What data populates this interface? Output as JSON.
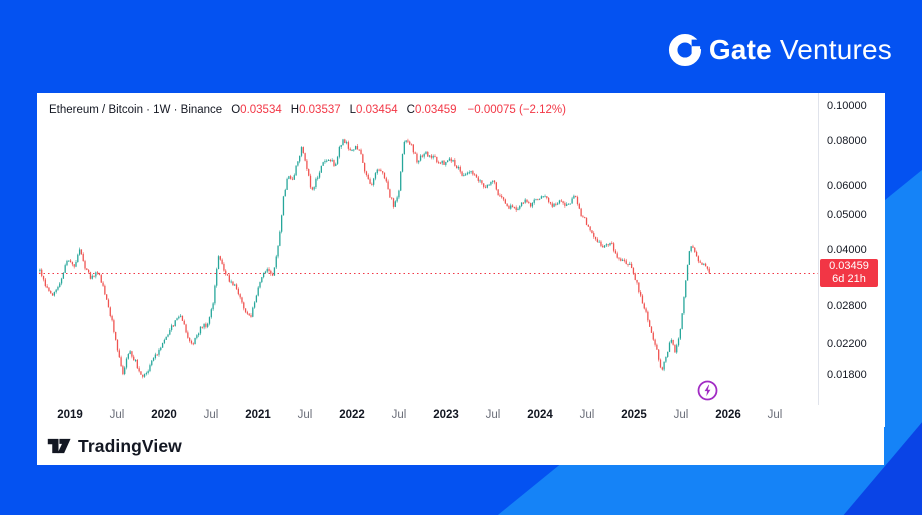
{
  "brand": {
    "gate_bold": "Gate",
    "gate_regular": "Ventures"
  },
  "header": {
    "symbol_title": "Ethereum / Bitcoin · 1W · Binance",
    "ohlc": [
      {
        "label": "O",
        "value": "0.03534"
      },
      {
        "label": "H",
        "value": "0.03537"
      },
      {
        "label": "L",
        "value": "0.03454"
      },
      {
        "label": "C",
        "value": "0.03459"
      }
    ],
    "change": "−0.00075 (−2.12%)"
  },
  "price_label": {
    "price": "0.03459",
    "countdown": "6d 21h",
    "value": 0.03459
  },
  "price_axis_ticks": [
    {
      "label": "0.10000",
      "value": 0.1
    },
    {
      "label": "0.08000",
      "value": 0.08
    },
    {
      "label": "0.06000",
      "value": 0.06
    },
    {
      "label": "0.05000",
      "value": 0.05
    },
    {
      "label": "0.04000",
      "value": 0.04
    },
    {
      "label": "0.02800",
      "value": 0.028
    },
    {
      "label": "0.02200",
      "value": 0.022
    },
    {
      "label": "0.01800",
      "value": 0.018
    }
  ],
  "time_axis_ticks": [
    {
      "label": "2019",
      "t": 2019.0,
      "major": true
    },
    {
      "label": "Jul",
      "t": 2019.5,
      "major": false
    },
    {
      "label": "2020",
      "t": 2020.0,
      "major": true
    },
    {
      "label": "Jul",
      "t": 2020.5,
      "major": false
    },
    {
      "label": "2021",
      "t": 2021.0,
      "major": true
    },
    {
      "label": "Jul",
      "t": 2021.5,
      "major": false
    },
    {
      "label": "2022",
      "t": 2022.0,
      "major": true
    },
    {
      "label": "Jul",
      "t": 2022.5,
      "major": false
    },
    {
      "label": "2023",
      "t": 2023.0,
      "major": true
    },
    {
      "label": "Jul",
      "t": 2023.5,
      "major": false
    },
    {
      "label": "2024",
      "t": 2024.0,
      "major": true
    },
    {
      "label": "Jul",
      "t": 2024.5,
      "major": false
    },
    {
      "label": "2025",
      "t": 2025.0,
      "major": true
    },
    {
      "label": "Jul",
      "t": 2025.5,
      "major": false
    },
    {
      "label": "2026",
      "t": 2026.0,
      "major": true
    },
    {
      "label": "Jul",
      "t": 2026.5,
      "major": false
    }
  ],
  "footer": {
    "tradingview": "TradingView"
  },
  "colors": {
    "background": "#0452f1",
    "background_light": "#1583f7",
    "background_corner": "#0a44e6",
    "card": "#ffffff",
    "text": "#131722",
    "muted_text": "#6a6d78",
    "axis_line": "#e0e3eb",
    "up": "#26a69a",
    "down": "#ef5350",
    "accent_red": "#f23645",
    "flash_purple": "#a12bc4"
  },
  "chart_data": {
    "type": "candlestick",
    "title": "Ethereum / Bitcoin",
    "interval": "1W",
    "exchange": "Binance",
    "scale": "log",
    "open": 0.03534,
    "high": 0.03537,
    "low": 0.03454,
    "close": 0.03459,
    "change": -0.00075,
    "change_pct": -2.12,
    "countdown": "6d 21h",
    "x_range_years": [
      2018.68,
      2026.8
    ],
    "y_axis_values": [
      0.1,
      0.08,
      0.06,
      0.05,
      0.04,
      0.028,
      0.022,
      0.018
    ],
    "bars": 372,
    "anchors": [
      [
        2018.68,
        0.0355
      ],
      [
        2018.74,
        0.0318
      ],
      [
        2018.82,
        0.03
      ],
      [
        2018.9,
        0.033
      ],
      [
        2018.97,
        0.038
      ],
      [
        2019.04,
        0.036
      ],
      [
        2019.1,
        0.04
      ],
      [
        2019.16,
        0.036
      ],
      [
        2019.22,
        0.0335
      ],
      [
        2019.3,
        0.035
      ],
      [
        2019.38,
        0.03
      ],
      [
        2019.45,
        0.0252
      ],
      [
        2019.51,
        0.021
      ],
      [
        2019.56,
        0.0183
      ],
      [
        2019.63,
        0.021
      ],
      [
        2019.7,
        0.0195
      ],
      [
        2019.76,
        0.018
      ],
      [
        2019.82,
        0.0182
      ],
      [
        2019.88,
        0.02
      ],
      [
        2019.95,
        0.021
      ],
      [
        2020.04,
        0.0235
      ],
      [
        2020.12,
        0.0253
      ],
      [
        2020.18,
        0.0262
      ],
      [
        2020.24,
        0.0235
      ],
      [
        2020.3,
        0.0215
      ],
      [
        2020.38,
        0.0242
      ],
      [
        2020.46,
        0.025
      ],
      [
        2020.52,
        0.0285
      ],
      [
        2020.58,
        0.039
      ],
      [
        2020.64,
        0.035
      ],
      [
        2020.7,
        0.033
      ],
      [
        2020.78,
        0.031
      ],
      [
        2020.85,
        0.0272
      ],
      [
        2020.92,
        0.0262
      ],
      [
        2020.98,
        0.0295
      ],
      [
        2021.04,
        0.034
      ],
      [
        2021.1,
        0.0352
      ],
      [
        2021.16,
        0.0335
      ],
      [
        2021.22,
        0.042
      ],
      [
        2021.27,
        0.056
      ],
      [
        2021.32,
        0.065
      ],
      [
        2021.37,
        0.063
      ],
      [
        2021.42,
        0.07
      ],
      [
        2021.47,
        0.0775
      ],
      [
        2021.52,
        0.068
      ],
      [
        2021.57,
        0.058
      ],
      [
        2021.63,
        0.064
      ],
      [
        2021.7,
        0.07
      ],
      [
        2021.76,
        0.071
      ],
      [
        2021.82,
        0.069
      ],
      [
        2021.88,
        0.079
      ],
      [
        2021.92,
        0.0805
      ],
      [
        2021.97,
        0.076
      ],
      [
        2022.03,
        0.077
      ],
      [
        2022.09,
        0.0745
      ],
      [
        2022.15,
        0.064
      ],
      [
        2022.2,
        0.06
      ],
      [
        2022.27,
        0.067
      ],
      [
        2022.33,
        0.066
      ],
      [
        2022.4,
        0.057
      ],
      [
        2022.45,
        0.0525
      ],
      [
        2022.5,
        0.059
      ],
      [
        2022.55,
        0.078
      ],
      [
        2022.58,
        0.0815
      ],
      [
        2022.64,
        0.077
      ],
      [
        2022.7,
        0.07
      ],
      [
        2022.76,
        0.0745
      ],
      [
        2022.83,
        0.073
      ],
      [
        2022.9,
        0.071
      ],
      [
        2022.97,
        0.0695
      ],
      [
        2023.04,
        0.072
      ],
      [
        2023.11,
        0.0685
      ],
      [
        2023.18,
        0.0645
      ],
      [
        2023.26,
        0.0665
      ],
      [
        2023.34,
        0.0628
      ],
      [
        2023.42,
        0.0598
      ],
      [
        2023.5,
        0.062
      ],
      [
        2023.58,
        0.0556
      ],
      [
        2023.66,
        0.053
      ],
      [
        2023.74,
        0.0518
      ],
      [
        2023.82,
        0.055
      ],
      [
        2023.9,
        0.0528
      ],
      [
        2023.97,
        0.0556
      ],
      [
        2024.05,
        0.0568
      ],
      [
        2024.12,
        0.053
      ],
      [
        2024.2,
        0.0548
      ],
      [
        2024.28,
        0.053
      ],
      [
        2024.37,
        0.0562
      ],
      [
        2024.44,
        0.05
      ],
      [
        2024.52,
        0.0465
      ],
      [
        2024.6,
        0.0425
      ],
      [
        2024.68,
        0.0408
      ],
      [
        2024.75,
        0.042
      ],
      [
        2024.82,
        0.0385
      ],
      [
        2024.9,
        0.037
      ],
      [
        2024.96,
        0.0362
      ],
      [
        2025.02,
        0.033
      ],
      [
        2025.09,
        0.0285
      ],
      [
        2025.16,
        0.0252
      ],
      [
        2025.22,
        0.0222
      ],
      [
        2025.29,
        0.0186
      ],
      [
        2025.34,
        0.02
      ],
      [
        2025.39,
        0.0228
      ],
      [
        2025.44,
        0.0207
      ],
      [
        2025.49,
        0.0238
      ],
      [
        2025.54,
        0.031
      ],
      [
        2025.59,
        0.0405
      ],
      [
        2025.63,
        0.0412
      ],
      [
        2025.68,
        0.0378
      ],
      [
        2025.73,
        0.0368
      ],
      [
        2025.77,
        0.0355
      ],
      [
        2025.8,
        0.03459
      ]
    ],
    "colors": {
      "up": "#26a69a",
      "down": "#ef5350",
      "price_line": "#f23645"
    }
  }
}
